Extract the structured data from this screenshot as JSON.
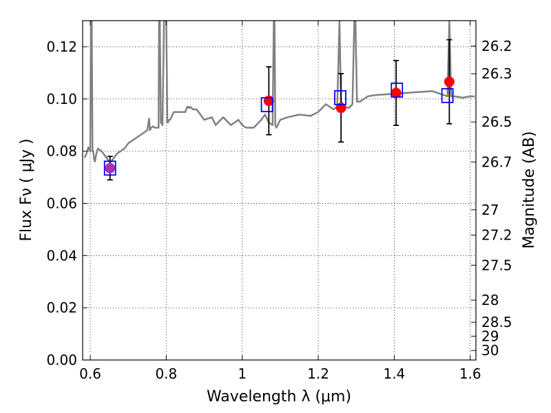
{
  "chart_data": {
    "type": "scatter",
    "xlabel": "Wavelength  λ (μm)",
    "ylabel": "Flux  Fν  ( μJy )",
    "y2label": "Magnitude (AB)",
    "xlim": [
      0.58,
      1.615
    ],
    "ylim": [
      0.0,
      0.13
    ],
    "x_ticks": [
      0.6,
      0.8,
      1.0,
      1.2,
      1.4,
      1.6
    ],
    "x_tick_labels": [
      "0.6",
      "0.8",
      "1",
      "1.2",
      "1.4",
      "1.6"
    ],
    "y_ticks": [
      0.0,
      0.02,
      0.04,
      0.06,
      0.08,
      0.1,
      0.12
    ],
    "y_tick_labels": [
      "0.00",
      "0.02",
      "0.04",
      "0.06",
      "0.08",
      "0.10",
      "0.12"
    ],
    "y2_ticks": [
      26.2,
      26.3,
      26.5,
      26.7,
      27,
      27.2,
      27.5,
      28,
      28.5,
      29,
      30
    ],
    "y2_tick_labels": [
      "26.2",
      "26.3",
      "26.5",
      "26.7",
      "27",
      "27.2",
      "27.5",
      "28",
      "28.5",
      "29",
      "30"
    ],
    "grid": true,
    "colors": {
      "model_line": "#808080",
      "observed": "#ff0000",
      "model_phot": "#0000ff",
      "errorbar": "#000000",
      "overlap": "#aa33aa"
    },
    "series": [
      {
        "kind": "observed",
        "x": [
          0.652,
          1.07,
          1.26,
          1.405,
          1.545
        ],
        "y": [
          0.0735,
          0.0993,
          0.0966,
          0.1023,
          0.1066
        ],
        "yerr": [
          0.0045,
          0.013,
          0.0131,
          0.0124,
          0.0161
        ]
      },
      {
        "kind": "model_photometry",
        "x": [
          0.652,
          1.065,
          1.258,
          1.407,
          1.54
        ],
        "y": [
          0.0735,
          0.0978,
          0.1005,
          0.1034,
          0.1013
        ]
      },
      {
        "kind": "model_spectrum",
        "x": [
          0.585,
          0.59,
          0.595,
          0.6,
          0.602,
          0.604,
          0.606,
          0.608,
          0.61,
          0.612,
          0.616,
          0.62,
          0.63,
          0.64,
          0.65,
          0.655,
          0.66,
          0.665,
          0.67,
          0.68,
          0.69,
          0.7,
          0.71,
          0.72,
          0.73,
          0.74,
          0.75,
          0.755,
          0.757,
          0.76,
          0.765,
          0.77,
          0.78,
          0.781,
          0.783,
          0.786,
          0.79,
          0.794,
          0.8,
          0.803,
          0.805,
          0.807,
          0.81,
          0.82,
          0.84,
          0.85,
          0.855,
          0.857,
          0.86,
          0.863,
          0.87,
          0.88,
          0.9,
          0.92,
          0.93,
          0.95,
          0.97,
          0.99,
          1.0,
          1.01,
          1.03,
          1.05,
          1.06,
          1.07,
          1.08,
          1.083,
          1.085,
          1.087,
          1.09,
          1.1,
          1.12,
          1.15,
          1.18,
          1.2,
          1.22,
          1.24,
          1.25,
          1.256,
          1.26,
          1.27,
          1.28,
          1.29,
          1.295,
          1.298,
          1.302,
          1.31,
          1.33,
          1.35,
          1.4,
          1.45,
          1.5,
          1.54,
          1.545,
          1.55,
          1.56,
          1.58,
          1.6,
          1.612
        ],
        "y": [
          0.0775,
          0.079,
          0.0815,
          0.08,
          0.13,
          0.13,
          0.08,
          0.08,
          0.077,
          0.076,
          0.079,
          0.081,
          0.08,
          0.078,
          0.076,
          0.076,
          0.077,
          0.078,
          0.079,
          0.08,
          0.081,
          0.083,
          0.084,
          0.085,
          0.086,
          0.087,
          0.088,
          0.0925,
          0.088,
          0.089,
          0.0895,
          0.089,
          0.089,
          0.13,
          0.13,
          0.091,
          0.09,
          0.13,
          0.13,
          0.091,
          0.091,
          0.092,
          0.092,
          0.095,
          0.095,
          0.095,
          0.097,
          0.097,
          0.0965,
          0.097,
          0.096,
          0.096,
          0.092,
          0.093,
          0.09,
          0.093,
          0.09,
          0.092,
          0.09,
          0.089,
          0.089,
          0.092,
          0.094,
          0.091,
          0.09,
          0.13,
          0.13,
          0.09,
          0.089,
          0.092,
          0.093,
          0.094,
          0.0935,
          0.095,
          0.098,
          0.096,
          0.097,
          0.13,
          0.099,
          0.097,
          0.0965,
          0.098,
          0.13,
          0.13,
          0.099,
          0.099,
          0.101,
          0.1015,
          0.102,
          0.1025,
          0.103,
          0.101,
          0.13,
          0.101,
          0.101,
          0.1005,
          0.101,
          0.101
        ]
      }
    ]
  }
}
